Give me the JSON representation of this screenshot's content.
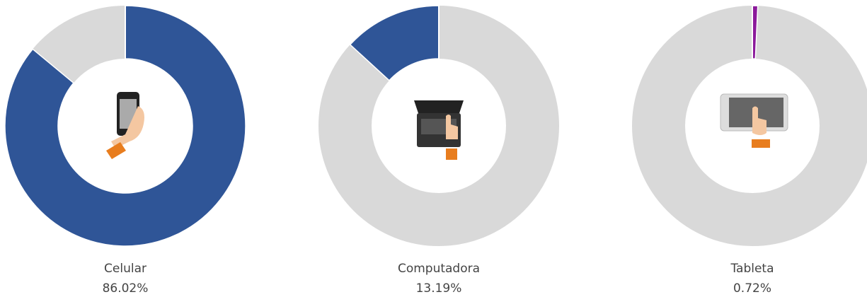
{
  "chart_data": [
    {
      "type": "pie",
      "categories": [
        "Celular"
      ],
      "values": [
        86.02
      ],
      "value_labels": [
        "86.02%"
      ],
      "colors": [
        "#2f5597"
      ],
      "direction": "clockwise"
    },
    {
      "type": "pie",
      "categories": [
        "Computadora"
      ],
      "values": [
        13.19
      ],
      "value_labels": [
        "13.19%"
      ],
      "colors": [
        "#2f5597"
      ],
      "direction": "counterclockwise"
    },
    {
      "type": "pie",
      "categories": [
        "Tableta"
      ],
      "values": [
        0.72
      ],
      "value_labels": [
        "0.72%"
      ],
      "colors": [
        "#8b1a9b"
      ],
      "direction": "clockwise"
    }
  ]
}
